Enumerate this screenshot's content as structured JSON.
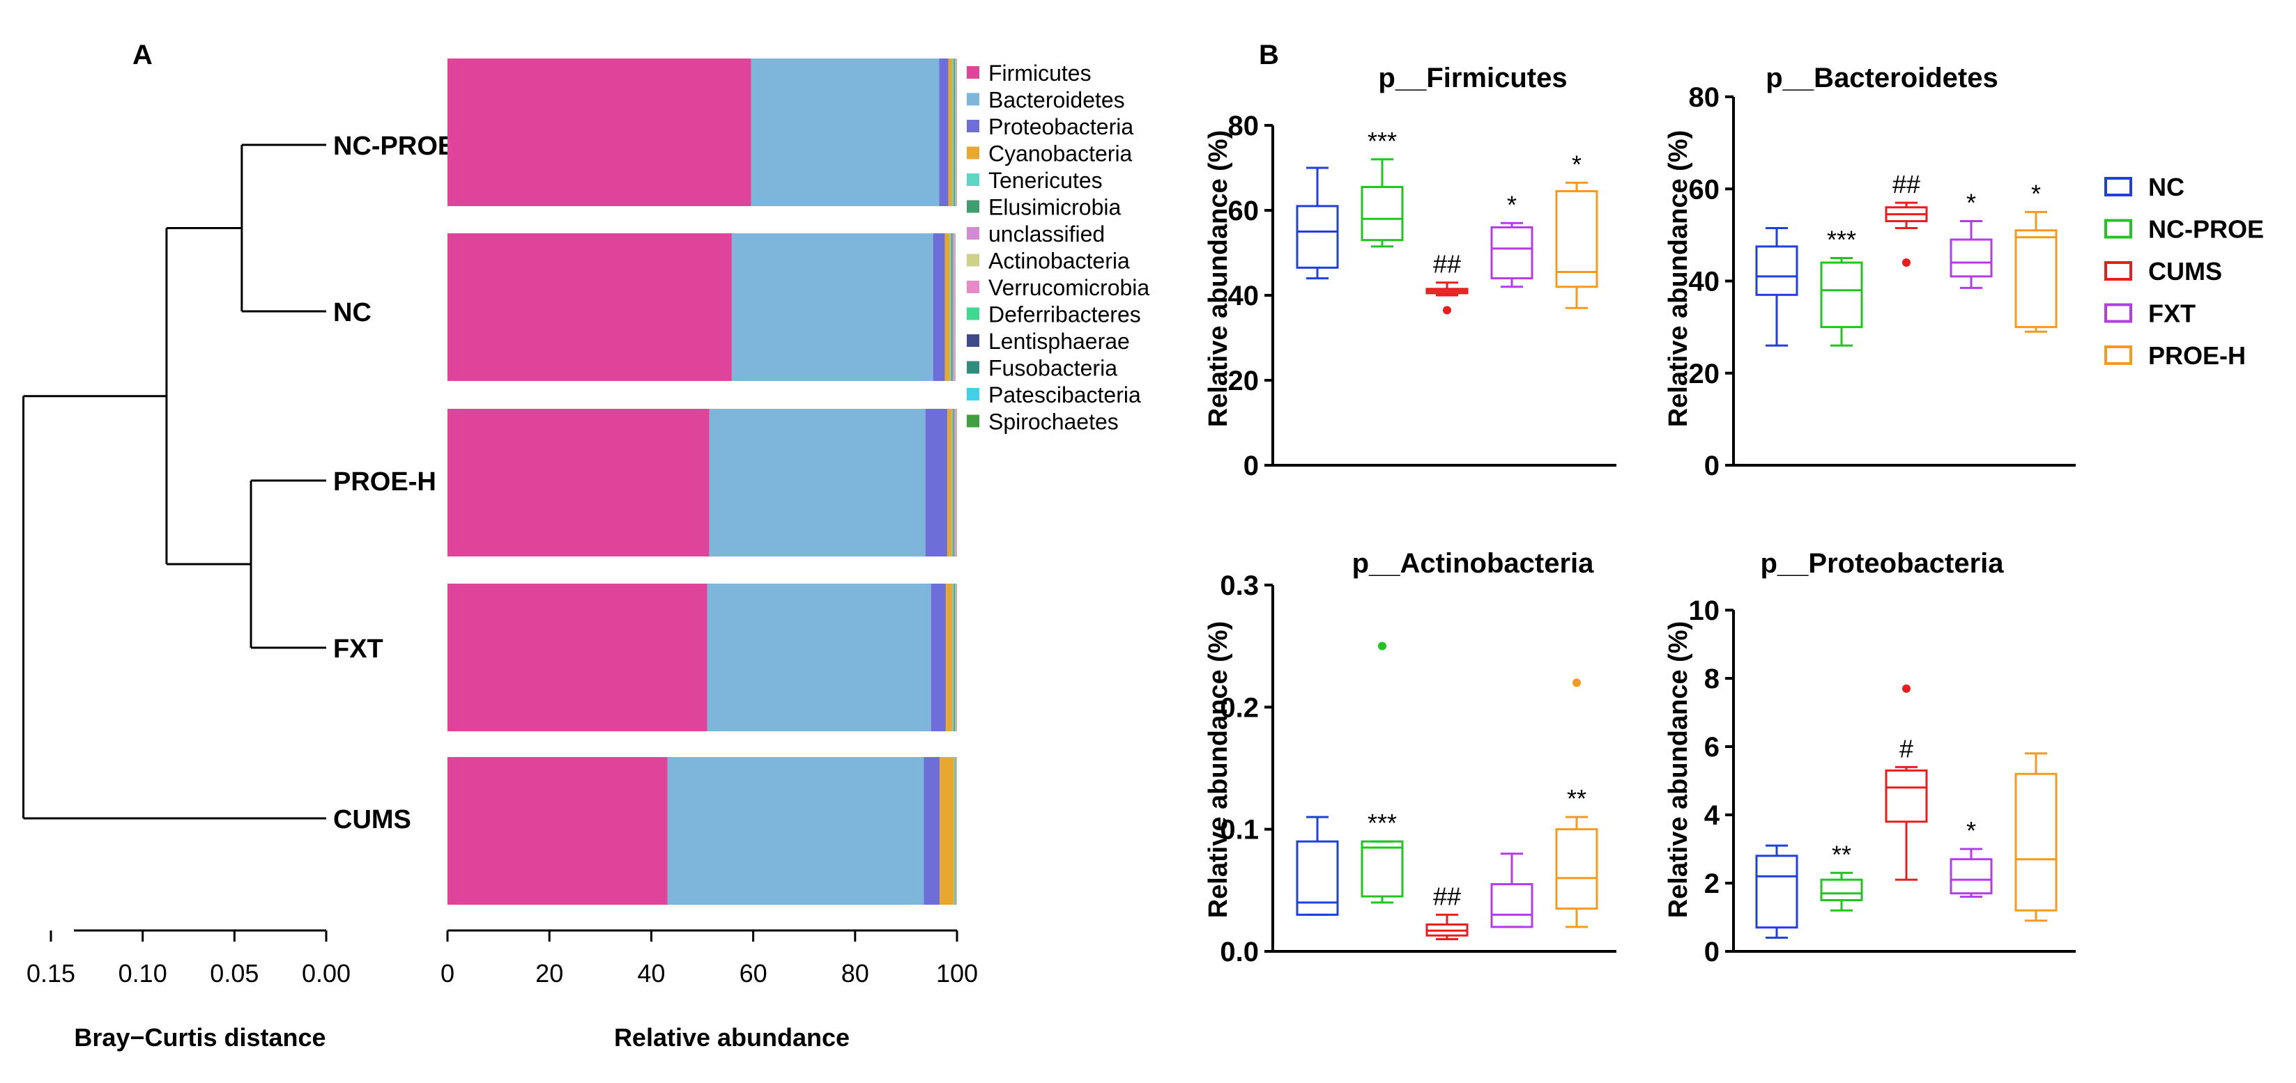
{
  "panels": {
    "A": "A",
    "B": "B"
  },
  "colors": {
    "phyla": {
      "Firmicutes": "#E0449A",
      "Bacteroidetes": "#7DB5DB",
      "Proteobacteria": "#6E6ED8",
      "Cyanobacteria": "#E8A830",
      "Tenericutes": "#5ED6C6",
      "Elusimicrobia": "#3E9E6E",
      "unclassified": "#D28AD2",
      "Actinobacteria": "#CFD08A",
      "Verrucomicrobia": "#E88AC8",
      "Deferribacteres": "#40D890",
      "Lentisphaerae": "#404A8A",
      "Fusobacteria": "#2E8E7E",
      "Patescibacteria": "#40D0E8",
      "Spirochaetes": "#40A040"
    },
    "groups": {
      "NC": "#1F3FE0",
      "NC-PROE": "#22C422",
      "CUMS": "#E81E1E",
      "FXT": "#B43CE8",
      "PROE-H": "#F59A1E"
    }
  },
  "chart_data": [
    {
      "id": "dendrogram",
      "type": "dendrogram",
      "xlabel": "Bray−Curtis distance",
      "ticks": [
        0.15,
        0.1,
        0.05,
        0.0
      ],
      "tick_labels": [
        "0.15",
        "0.10",
        "0.05",
        "0.00"
      ],
      "xlim": [
        0.0,
        0.165
      ],
      "leaves": [
        "NC-PROE",
        "NC",
        "PROE-H",
        "FXT",
        "CUMS"
      ],
      "merges": [
        {
          "a": "NC-PROE",
          "b": "NC",
          "height": 0.046
        },
        {
          "a": "PROE-H",
          "b": "FXT",
          "height": 0.041
        },
        {
          "a": "merge0",
          "b": "merge1",
          "height": 0.087
        },
        {
          "a": "merge2",
          "b": "CUMS",
          "height": 0.165
        }
      ]
    },
    {
      "id": "stacked-bars",
      "type": "bar",
      "orientation": "horizontal",
      "stacked": true,
      "xlabel": "Relative abundance",
      "xlim": [
        0,
        100
      ],
      "ticks": [
        0,
        20,
        40,
        60,
        80,
        100
      ],
      "categories": [
        "NC-PROE",
        "NC",
        "PROE-H",
        "FXT",
        "CUMS"
      ],
      "series": [
        {
          "name": "Firmicutes",
          "values": [
            59.6,
            55.8,
            51.4,
            51.0,
            43.2
          ]
        },
        {
          "name": "Bacteroidetes",
          "values": [
            36.9,
            39.5,
            42.4,
            43.9,
            50.3
          ]
        },
        {
          "name": "Proteobacteria",
          "values": [
            1.8,
            2.3,
            4.3,
            2.9,
            3.1
          ]
        },
        {
          "name": "Cyanobacteria",
          "values": [
            0.8,
            1.0,
            0.9,
            1.3,
            2.8
          ]
        },
        {
          "name": "Tenericutes",
          "values": [
            0.3,
            0.3,
            0.2,
            0.3,
            0.2
          ]
        },
        {
          "name": "Elusimicrobia",
          "values": [
            0.2,
            0.2,
            0.2,
            0.2,
            0.1
          ]
        },
        {
          "name": "unclassified",
          "values": [
            0.1,
            0.3,
            0.3,
            0.1,
            0.1
          ]
        },
        {
          "name": "Actinobacteria",
          "values": [
            0.1,
            0.1,
            0.1,
            0.1,
            0.1
          ]
        },
        {
          "name": "Verrucomicrobia",
          "values": [
            0.1,
            0.1,
            0.1,
            0.1,
            0.05
          ]
        },
        {
          "name": "Deferribacteres",
          "values": [
            0.05,
            0.05,
            0.05,
            0.05,
            0.05
          ]
        },
        {
          "name": "Lentisphaerae",
          "values": [
            0.02,
            0.02,
            0.02,
            0.02,
            0.02
          ]
        },
        {
          "name": "Fusobacteria",
          "values": [
            0.01,
            0.01,
            0.01,
            0.01,
            0.01
          ]
        },
        {
          "name": "Patescibacteria",
          "values": [
            0.01,
            0.01,
            0.01,
            0.01,
            0.01
          ]
        },
        {
          "name": "Spirochaetes",
          "values": [
            0.01,
            0.01,
            0.01,
            0.01,
            0.01
          ]
        }
      ],
      "legend": [
        "Firmicutes",
        "Bacteroidetes",
        "Proteobacteria",
        "Cyanobacteria",
        "Tenericutes",
        "Elusimicrobia",
        "unclassified",
        "Actinobacteria",
        "Verrucomicrobia",
        "Deferribacteres",
        "Lentisphaerae",
        "Fusobacteria",
        "Patescibacteria",
        "Spirochaetes"
      ]
    },
    {
      "id": "box-firmicutes",
      "type": "box",
      "title": "p__Firmicutes",
      "ylabel": "Relative abundance (%)",
      "ylim": [
        0,
        80
      ],
      "ticks": [
        0,
        20,
        40,
        60,
        80
      ],
      "groups": [
        {
          "name": "NC",
          "min": 44,
          "q1": 46.5,
          "median": 55,
          "q3": 61,
          "max": 70,
          "outliers": [],
          "mark": ""
        },
        {
          "name": "NC-PROE",
          "min": 51.5,
          "q1": 53,
          "median": 58,
          "q3": 65.5,
          "max": 72,
          "outliers": [],
          "mark": "***"
        },
        {
          "name": "CUMS",
          "min": 40,
          "q1": 40.5,
          "median": 41,
          "q3": 41.5,
          "max": 43,
          "outliers": [
            36.5
          ],
          "mark": "##"
        },
        {
          "name": "FXT",
          "min": 42,
          "q1": 44,
          "median": 51,
          "q3": 56,
          "max": 57,
          "outliers": [],
          "mark": "*"
        },
        {
          "name": "PROE-H",
          "min": 37,
          "q1": 42,
          "median": 45.5,
          "q3": 64.5,
          "max": 66.5,
          "outliers": [],
          "mark": "*"
        }
      ]
    },
    {
      "id": "box-bacteroidetes",
      "type": "box",
      "title": "p__Bacteroidetes",
      "ylabel": "Relative abundance (%)",
      "ylim": [
        0,
        80
      ],
      "ticks": [
        0,
        20,
        40,
        60,
        80
      ],
      "groups": [
        {
          "name": "NC",
          "min": 26,
          "q1": 37,
          "median": 41,
          "q3": 47.5,
          "max": 51.5,
          "outliers": [],
          "mark": ""
        },
        {
          "name": "NC-PROE",
          "min": 26,
          "q1": 30,
          "median": 38,
          "q3": 44,
          "max": 45,
          "outliers": [],
          "mark": "***"
        },
        {
          "name": "CUMS",
          "min": 51.5,
          "q1": 53,
          "median": 54.5,
          "q3": 56,
          "max": 57,
          "outliers": [
            44
          ],
          "mark": "##"
        },
        {
          "name": "FXT",
          "min": 38.5,
          "q1": 41,
          "median": 44,
          "q3": 49,
          "max": 53,
          "outliers": [],
          "mark": "*"
        },
        {
          "name": "PROE-H",
          "min": 29,
          "q1": 30,
          "median": 49.5,
          "q3": 51,
          "max": 55,
          "outliers": [],
          "mark": "*"
        }
      ]
    },
    {
      "id": "box-actinobacteria",
      "type": "box",
      "title": "p__Actinobacteria",
      "ylabel": "Relative abundance (%)",
      "ylim": [
        0,
        0.3
      ],
      "ticks": [
        0,
        0.1,
        0.2,
        0.3
      ],
      "tick_labels": [
        "0.0",
        "0.1",
        "0.2",
        "0.3"
      ],
      "groups": [
        {
          "name": "NC",
          "min": 0.03,
          "q1": 0.03,
          "median": 0.04,
          "q3": 0.09,
          "max": 0.11,
          "outliers": [],
          "mark": ""
        },
        {
          "name": "NC-PROE",
          "min": 0.04,
          "q1": 0.045,
          "median": 0.085,
          "q3": 0.09,
          "max": 0.09,
          "outliers": [
            0.25
          ],
          "mark": "***"
        },
        {
          "name": "CUMS",
          "min": 0.01,
          "q1": 0.013,
          "median": 0.017,
          "q3": 0.022,
          "max": 0.03,
          "outliers": [],
          "mark": "##"
        },
        {
          "name": "FXT",
          "min": 0.02,
          "q1": 0.02,
          "median": 0.03,
          "q3": 0.055,
          "max": 0.08,
          "outliers": [],
          "mark": ""
        },
        {
          "name": "PROE-H",
          "min": 0.02,
          "q1": 0.035,
          "median": 0.06,
          "q3": 0.1,
          "max": 0.11,
          "outliers": [
            0.22
          ],
          "mark": "**"
        }
      ]
    },
    {
      "id": "box-proteobacteria",
      "type": "box",
      "title": "p__Proteobacteria",
      "ylabel": "Relative abundance (%)",
      "ylim": [
        0,
        10
      ],
      "ticks": [
        0,
        2,
        4,
        6,
        8,
        10
      ],
      "groups": [
        {
          "name": "NC",
          "min": 0.4,
          "q1": 0.7,
          "median": 2.2,
          "q3": 2.8,
          "max": 3.1,
          "outliers": [],
          "mark": ""
        },
        {
          "name": "NC-PROE",
          "min": 1.2,
          "q1": 1.5,
          "median": 1.7,
          "q3": 2.1,
          "max": 2.3,
          "outliers": [],
          "mark": "**"
        },
        {
          "name": "CUMS",
          "min": 2.1,
          "q1": 3.8,
          "median": 4.8,
          "q3": 5.3,
          "max": 5.4,
          "outliers": [
            7.7
          ],
          "mark": "#"
        },
        {
          "name": "FXT",
          "min": 1.6,
          "q1": 1.7,
          "median": 2.1,
          "q3": 2.7,
          "max": 3.0,
          "outliers": [],
          "mark": "*"
        },
        {
          "name": "PROE-H",
          "min": 0.9,
          "q1": 1.2,
          "median": 2.7,
          "q3": 5.2,
          "max": 5.8,
          "outliers": [],
          "mark": ""
        }
      ]
    }
  ],
  "group_legend": [
    "NC",
    "NC-PROE",
    "CUMS",
    "FXT",
    "PROE-H"
  ]
}
